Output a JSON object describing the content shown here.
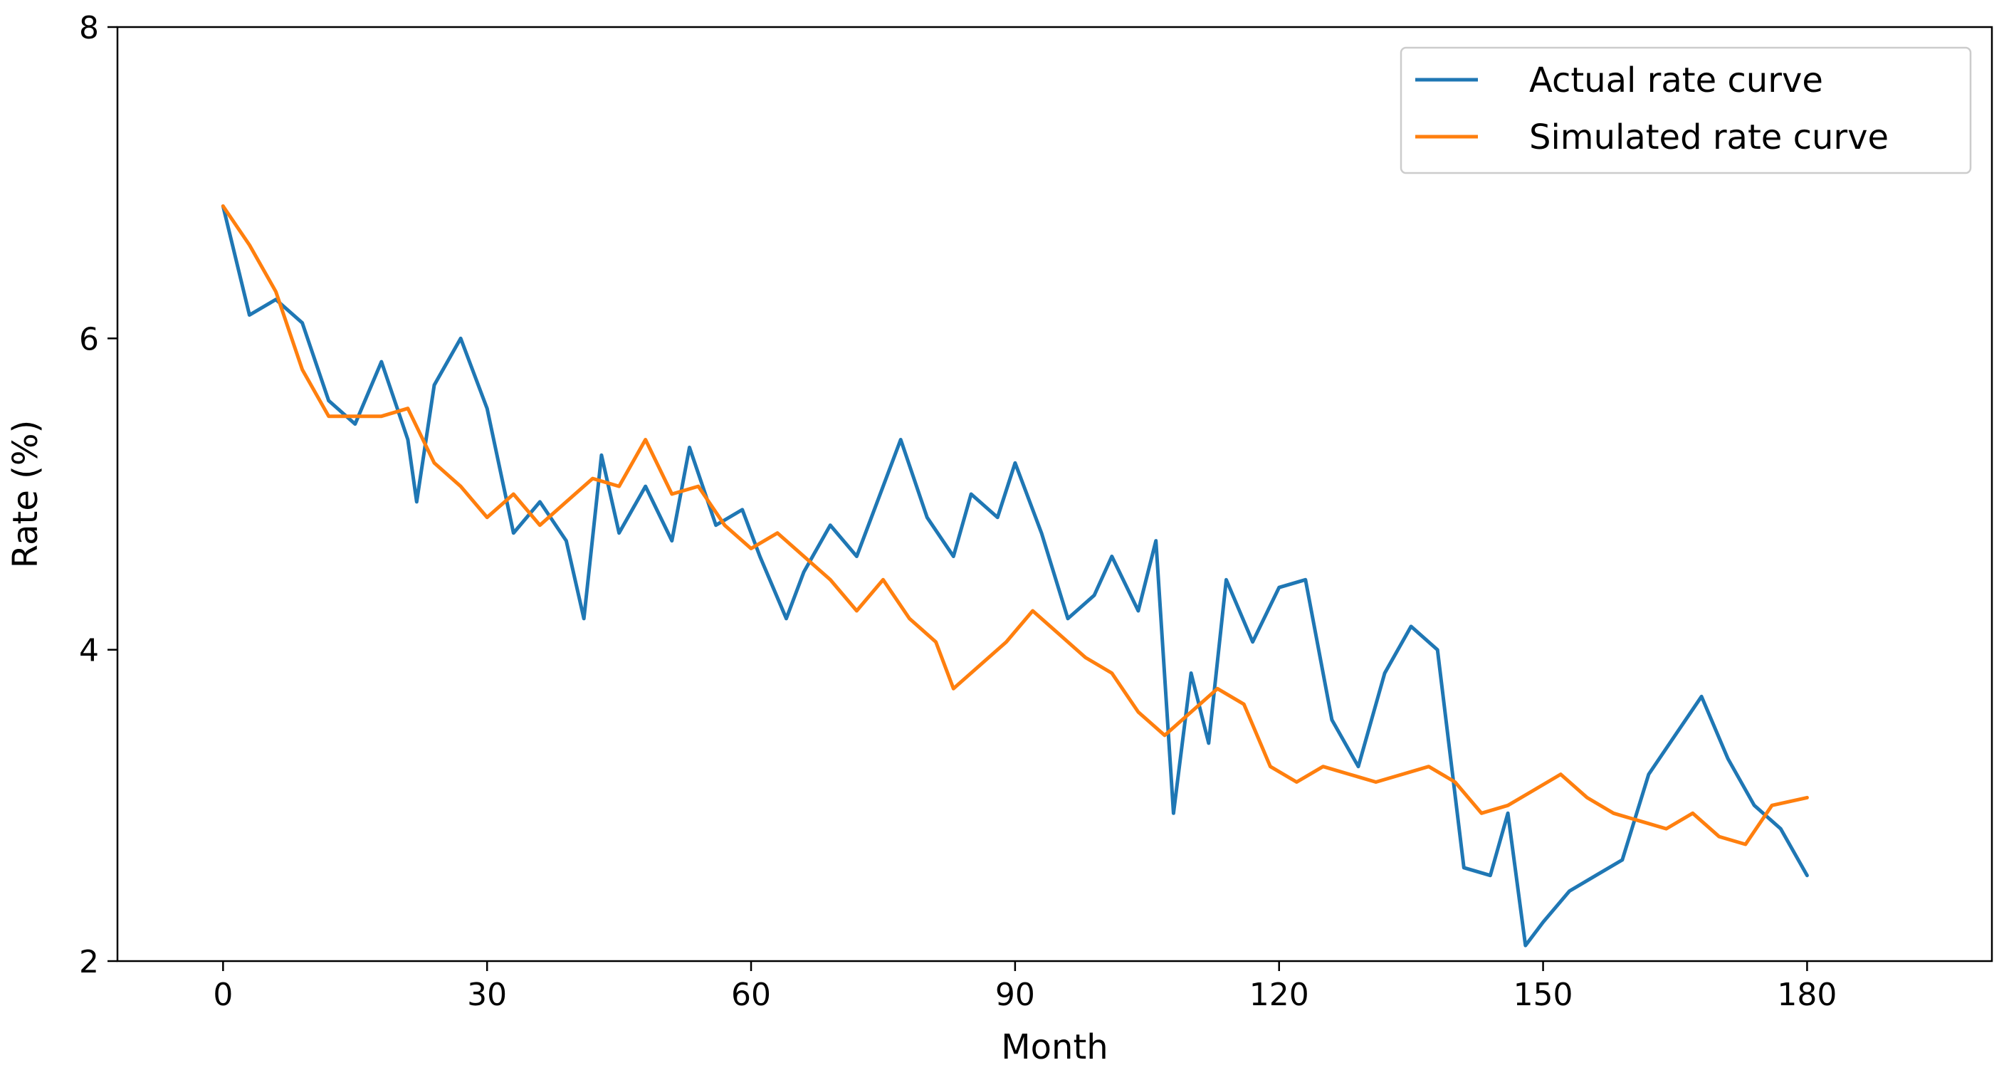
{
  "chart_data": {
    "type": "line",
    "title": "",
    "xlabel": "Month",
    "ylabel": "Rate (%)",
    "xlim": [
      -12,
      201
    ],
    "ylim": [
      2,
      8
    ],
    "xticks": [
      0,
      30,
      60,
      90,
      120,
      150,
      180
    ],
    "yticks": [
      2,
      4,
      6,
      8
    ],
    "grid": false,
    "legend_position": "top-right",
    "series": [
      {
        "name": "Actual rate curve",
        "color": "#1f77b4",
        "x": [
          0,
          3,
          6,
          9,
          12,
          15,
          18,
          21,
          22,
          24,
          27,
          30,
          33,
          36,
          39,
          41,
          43,
          45,
          48,
          51,
          53,
          56,
          59,
          61,
          64,
          66,
          69,
          72,
          75,
          77,
          80,
          83,
          85,
          88,
          90,
          93,
          96,
          99,
          101,
          104,
          106,
          108,
          110,
          112,
          114,
          117,
          120,
          123,
          126,
          129,
          132,
          135,
          138,
          141,
          144,
          146,
          148,
          150,
          153,
          156,
          159,
          162,
          165,
          168,
          171,
          174,
          177,
          180
        ],
        "y": [
          6.85,
          6.15,
          6.25,
          6.1,
          5.6,
          5.45,
          5.85,
          5.35,
          4.95,
          5.7,
          6.0,
          5.55,
          4.75,
          4.95,
          4.7,
          4.2,
          5.25,
          4.75,
          5.05,
          4.7,
          5.3,
          4.8,
          4.9,
          4.6,
          4.2,
          4.5,
          4.8,
          4.6,
          5.05,
          5.35,
          4.85,
          4.6,
          5.0,
          4.85,
          5.2,
          4.75,
          4.2,
          4.35,
          4.6,
          4.25,
          4.7,
          2.95,
          3.85,
          3.4,
          4.45,
          4.05,
          4.4,
          4.45,
          3.55,
          3.25,
          3.85,
          4.15,
          4.0,
          2.6,
          2.55,
          2.95,
          2.1,
          2.25,
          2.45,
          2.55,
          2.65,
          3.2,
          3.45,
          3.7,
          3.3,
          3.0,
          2.85,
          2.55
        ]
      },
      {
        "name": "Simulated rate curve",
        "color": "#ff7f0e",
        "x": [
          0,
          3,
          6,
          9,
          12,
          15,
          18,
          21,
          24,
          27,
          30,
          33,
          36,
          39,
          42,
          45,
          48,
          51,
          54,
          57,
          60,
          63,
          66,
          69,
          72,
          75,
          78,
          81,
          83,
          86,
          89,
          92,
          95,
          98,
          101,
          104,
          107,
          110,
          113,
          116,
          119,
          122,
          125,
          128,
          131,
          134,
          137,
          140,
          143,
          146,
          149,
          152,
          155,
          158,
          161,
          164,
          167,
          170,
          173,
          176,
          180
        ],
        "y": [
          6.85,
          6.6,
          6.3,
          5.8,
          5.5,
          5.5,
          5.5,
          5.55,
          5.2,
          5.05,
          4.85,
          5.0,
          4.8,
          4.95,
          5.1,
          5.05,
          5.35,
          5.0,
          5.05,
          4.8,
          4.65,
          4.75,
          4.6,
          4.45,
          4.25,
          4.45,
          4.2,
          4.05,
          3.75,
          3.9,
          4.05,
          4.25,
          4.1,
          3.95,
          3.85,
          3.6,
          3.45,
          3.6,
          3.75,
          3.65,
          3.25,
          3.15,
          3.25,
          3.2,
          3.15,
          3.2,
          3.25,
          3.15,
          2.95,
          3.0,
          3.1,
          3.2,
          3.05,
          2.95,
          2.9,
          2.85,
          2.95,
          2.8,
          2.75,
          3.0,
          3.05
        ]
      }
    ]
  }
}
